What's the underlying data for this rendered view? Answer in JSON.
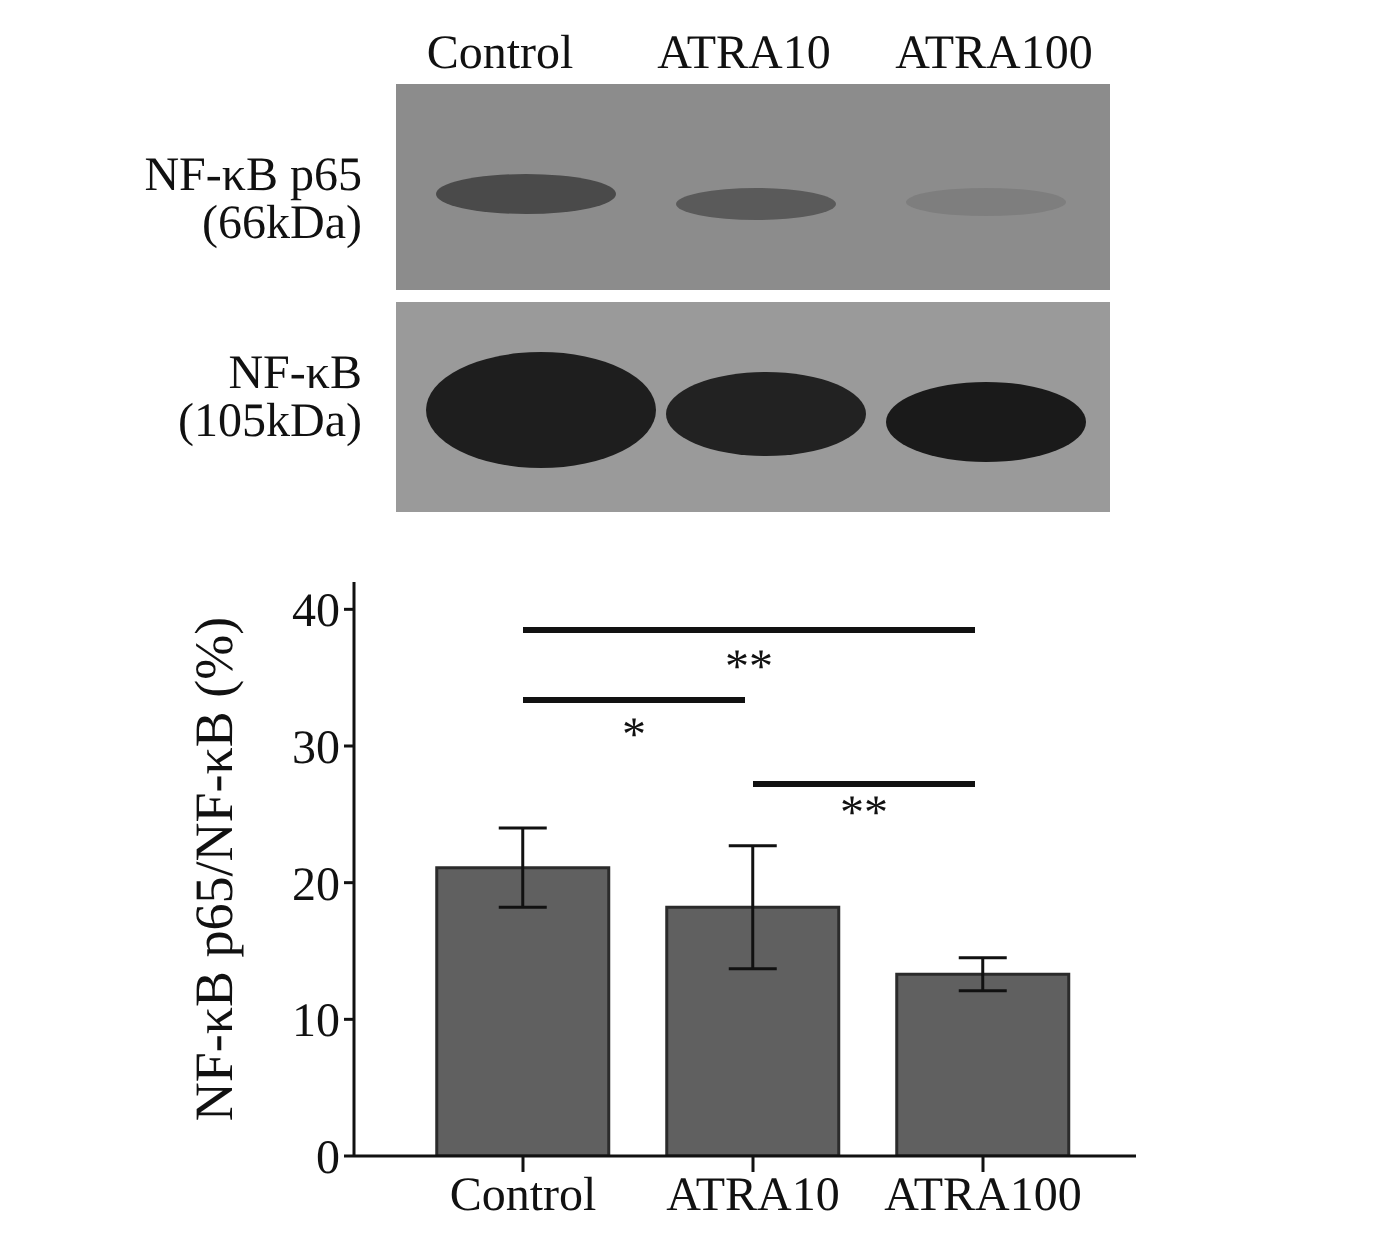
{
  "chart_data": {
    "type": "bar",
    "ylabel": "NF-κB p65/NF-κB (%)",
    "categories": [
      "Control",
      "ATRA10",
      "ATRA100"
    ],
    "values": [
      21.1,
      18.2,
      13.3
    ],
    "errors": [
      2.9,
      4.5,
      1.2
    ],
    "color": "#606060",
    "ylim": [
      0,
      42
    ],
    "yticks": [
      0,
      10,
      20,
      30,
      40
    ],
    "annotations": [
      "NF-κB p65 (66kDa)",
      "NF-κB (105kDa)",
      "**",
      "*",
      "**"
    ]
  }
}
